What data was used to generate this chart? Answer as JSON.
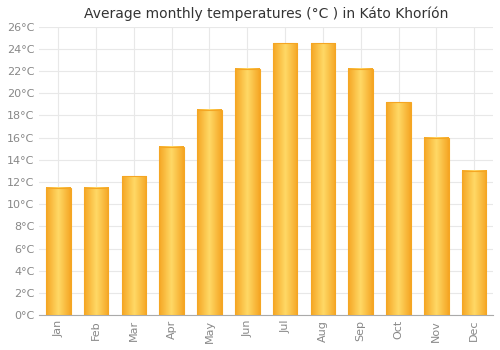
{
  "title": "Average monthly temperatures (°C ) in Káto Khoríón",
  "months": [
    "Jan",
    "Feb",
    "Mar",
    "Apr",
    "May",
    "Jun",
    "Jul",
    "Aug",
    "Sep",
    "Oct",
    "Nov",
    "Dec"
  ],
  "temperatures": [
    11.5,
    11.5,
    12.5,
    15.2,
    18.5,
    22.2,
    24.5,
    24.5,
    22.2,
    19.2,
    16.0,
    13.0
  ],
  "bar_color_center": "#FFD966",
  "bar_color_edge": "#F5A623",
  "background_color": "#ffffff",
  "plot_bg_color": "#ffffff",
  "ylim": [
    0,
    26
  ],
  "yticks": [
    0,
    2,
    4,
    6,
    8,
    10,
    12,
    14,
    16,
    18,
    20,
    22,
    24,
    26
  ],
  "ytick_labels": [
    "0°C",
    "2°C",
    "4°C",
    "6°C",
    "8°C",
    "10°C",
    "12°C",
    "14°C",
    "16°C",
    "18°C",
    "20°C",
    "22°C",
    "24°C",
    "26°C"
  ],
  "grid_color": "#e8e8e8",
  "title_fontsize": 10,
  "tick_fontsize": 8,
  "tick_color": "#888888"
}
